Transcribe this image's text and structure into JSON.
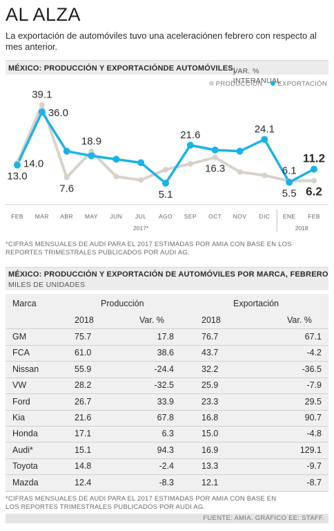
{
  "title": "AL ALZA",
  "subtitle": "La exportación de automóviles tuvo una aceleraciónen febrero con respecto al mes anterior.",
  "chart_section": {
    "title": "MÉXICO: PRODUCCIÓN Y EXPORTACIÓNDE AUTOMÓVILES",
    "unit": "VAR. % INTERANUAL"
  },
  "legend": [
    {
      "label": "PRODUCCIÓN",
      "color": "#d7d2ca"
    },
    {
      "label": "EXPORTACIÓN",
      "color": "#1ab3e6"
    }
  ],
  "chart_data": {
    "type": "line",
    "categories": [
      "FEB",
      "MAR",
      "ABR",
      "MAY",
      "JUN",
      "JUL",
      "AGO",
      "SEP",
      "OCT",
      "NOV",
      "DIC",
      "ENE",
      "FEB"
    ],
    "year_labels": [
      {
        "label": "2017*",
        "span": [
          0,
          10
        ]
      },
      {
        "label": "2018",
        "span": [
          11,
          12
        ]
      }
    ],
    "series": [
      {
        "name": "PRODUCCIÓN",
        "color": "#d7d2ca",
        "values": [
          14.0,
          39.1,
          7.6,
          18.9,
          8.0,
          6.5,
          11.0,
          13.5,
          16.3,
          10.0,
          8.5,
          6.1,
          6.2
        ]
      },
      {
        "name": "EXPORTACIÓN",
        "color": "#1ab3e6",
        "values": [
          13.0,
          36.0,
          19.0,
          17.0,
          15.5,
          14.0,
          5.1,
          21.6,
          19.5,
          19.0,
          24.1,
          5.5,
          11.2
        ]
      }
    ],
    "labels": [
      {
        "series": 0,
        "index": 0,
        "text": "14.0",
        "pos": "right"
      },
      {
        "series": 1,
        "index": 0,
        "text": "13.0",
        "pos": "below"
      },
      {
        "series": 0,
        "index": 1,
        "text": "39.1",
        "pos": "above"
      },
      {
        "series": 1,
        "index": 1,
        "text": "36.0",
        "pos": "right"
      },
      {
        "series": 0,
        "index": 2,
        "text": "7.6",
        "pos": "below"
      },
      {
        "series": 0,
        "index": 3,
        "text": "18.9",
        "pos": "above"
      },
      {
        "series": 1,
        "index": 6,
        "text": "5.1",
        "pos": "below"
      },
      {
        "series": 1,
        "index": 7,
        "text": "21.6",
        "pos": "above"
      },
      {
        "series": 0,
        "index": 8,
        "text": "16.3",
        "pos": "below"
      },
      {
        "series": 1,
        "index": 10,
        "text": "24.1",
        "pos": "above"
      },
      {
        "series": 0,
        "index": 11,
        "text": "6.1",
        "pos": "above"
      },
      {
        "series": 1,
        "index": 11,
        "text": "5.5",
        "pos": "below"
      },
      {
        "series": 1,
        "index": 12,
        "text": "11.2",
        "pos": "above",
        "bold": true
      },
      {
        "series": 0,
        "index": 12,
        "text": "6.2",
        "pos": "below",
        "bold": true
      }
    ],
    "ylim": [
      0,
      42
    ],
    "grid": false
  },
  "footnote1": "*CIFRAS MENSUALES DE AUDI PARA EL 2017 ESTIMADAS POR AMIA CON BASE EN LOS REPORTES TRIMESTRALES PUBLICADOS POR AUDI AG.",
  "table_section": {
    "title": "MÉXICO: PRODUCCIÓN Y EXPORTACIÓN DE AUTOMÓVILES POR MARCA, FEBRERO",
    "unit": "MILES DE UNIDADES"
  },
  "table": {
    "col_marca": "Marca",
    "group_produccion": "Producción",
    "group_exportacion": "Exportación",
    "sub_headers": [
      "2018",
      "Var. %",
      "2018",
      "Var. %"
    ],
    "rows": [
      [
        "GM",
        "75.7",
        "17.8",
        "76.7",
        "67.1"
      ],
      [
        "FCA",
        "61.0",
        "38.6",
        "43.7",
        "-4.2"
      ],
      [
        "Nissan",
        "55.9",
        "-24.4",
        "32.2",
        "-36.5"
      ],
      [
        "VW",
        "28.2",
        "-32.5",
        "25.9",
        "-7.9"
      ],
      [
        "Ford",
        "26.7",
        "33.9",
        "23.3",
        "29.5"
      ],
      [
        "Kia",
        "21.6",
        "67.8",
        "16.8",
        "90.7"
      ],
      [
        "Honda",
        "17.1",
        "6.3",
        "15.0",
        "-4.8"
      ],
      [
        "Audi*",
        "15.1",
        "94.3",
        "16.9",
        "129.1"
      ],
      [
        "Toyota",
        "14.8",
        "-2.4",
        "13.3",
        "-9.7"
      ],
      [
        "Mazda",
        "12.4",
        "-8.3",
        "12.1",
        "-8.7"
      ]
    ]
  },
  "footnote2": "*CIFRAS MENSUALES DE AUDI PARA EL 2017 ESTIMADAS POR AMIA CON BASE EN LOS REPORTES TRIMESTRALES PUBLICADOS POR AUDI AG.",
  "source": "FUENTE: AMIA. GRÁFICO EE: STAFF."
}
